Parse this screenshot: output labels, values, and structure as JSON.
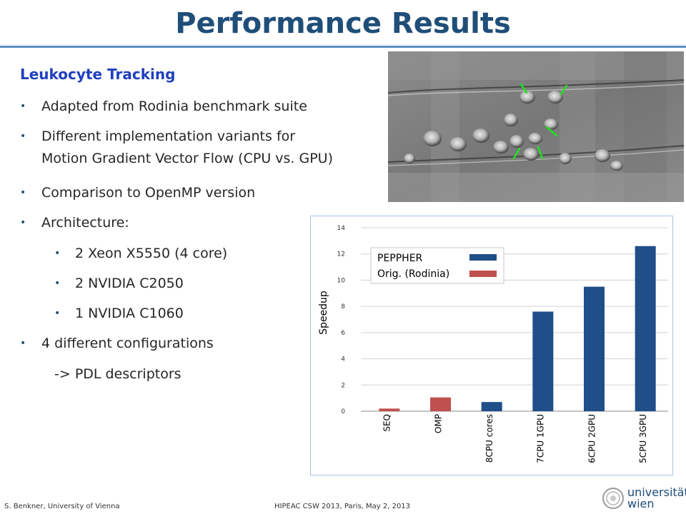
{
  "title": "Performance Results",
  "subtitle": "Leukocyte Tracking",
  "bullets": [
    {
      "text": "Adapted from Rodinia benchmark suite"
    },
    {
      "text": "Different implementation variants for"
    },
    {
      "text": "Motion Gradient Vector Flow (CPU vs. GPU)"
    },
    {
      "text": "Comparison to OpenMP version"
    },
    {
      "text": "Architecture:"
    },
    {
      "text": "2 Xeon X5550 (4 core)"
    },
    {
      "text": "2 NVIDIA C2050"
    },
    {
      "text": "1 NVIDIA C1060"
    },
    {
      "text": "4 different configurations"
    },
    {
      "text": "-> PDL descriptors"
    }
  ],
  "footer": {
    "left": "S. Benkner, University of Vienna",
    "middle": "HIPEAC CSW 2013, Paris, May 2, 2013",
    "logo_line1": "universität",
    "logo_line2": "wien"
  },
  "colors": {
    "title": "#1f4e79",
    "subtitle": "#1f3fbf",
    "peppher": "#1f4e89",
    "rodinia": "#c0504d"
  },
  "chart_data": {
    "type": "bar",
    "ylabel": "Speedup",
    "xlabel": "",
    "ylim": [
      0,
      14
    ],
    "yticks": [
      "0",
      "2",
      "4",
      "6",
      "8",
      "10",
      "12",
      "14"
    ],
    "categories": [
      "SEQ",
      "OMP",
      "8CPU cores",
      "7CPU 1GPU",
      "6CPU 2GPU",
      "5CPU 3GPU"
    ],
    "series": [
      {
        "name": "PEPPHER",
        "values": [
          0,
          0,
          0.7,
          7.6,
          9.5,
          12.6
        ]
      },
      {
        "name": "Orig. (Rodinia)",
        "values": [
          0.2,
          1.05,
          0,
          0,
          0,
          0
        ]
      }
    ],
    "grid": true,
    "legend": "top-left"
  }
}
